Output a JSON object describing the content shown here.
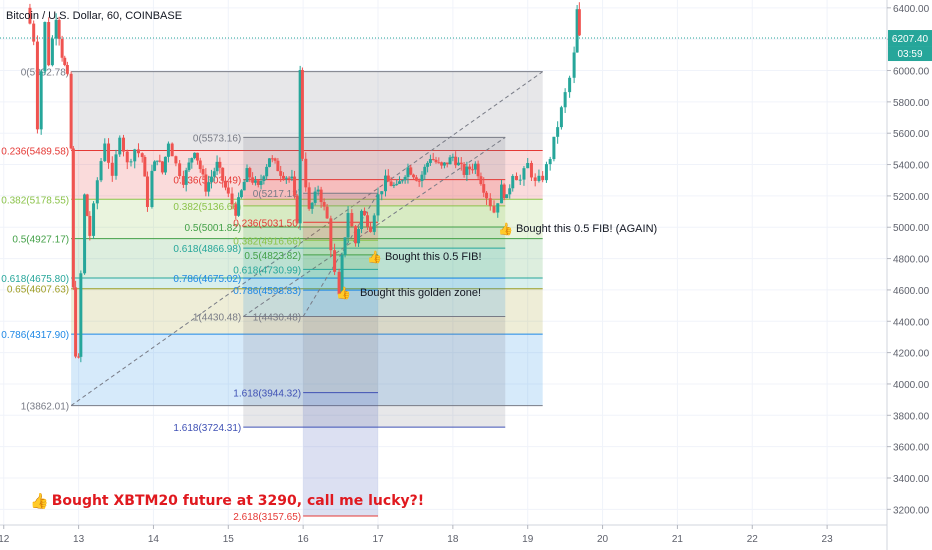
{
  "header": {
    "title": "Bitcoin / U.S. Dollar, 60, COINBASE"
  },
  "price_badges": {
    "last": "6207.40",
    "countdown": "03:59"
  },
  "annotations": [
    {
      "text": "Bought this 0.5 FIB! (AGAIN)",
      "icon": "thumbs-up-icon"
    },
    {
      "text": "Bought this 0.5 FIB!",
      "icon": "thumbs-up-icon"
    },
    {
      "text": "Bought this golden zone!",
      "icon": "thumbs-up-icon"
    }
  ],
  "big_annotation": {
    "text": "Bought XBTM20 future at 3290, call me lucky?!",
    "icon": "thumbs-up-icon"
  },
  "colors": {
    "up": "#26a69a",
    "down": "#ef5350",
    "accent": "#2962ff",
    "red_text": "#e0191f"
  },
  "chart_data": {
    "type": "candlestick",
    "title": "Bitcoin / U.S. Dollar, 60, COINBASE",
    "x_ticks": [
      "12",
      "13",
      "14",
      "15",
      "16",
      "17",
      "18",
      "19",
      "20",
      "21",
      "22",
      "23"
    ],
    "y_ticks": [
      "6400.00",
      "6200.00",
      "6000.00",
      "5800.00",
      "5600.00",
      "5400.00",
      "5200.00",
      "5000.00",
      "4800.00",
      "4600.00",
      "4400.00",
      "4200.00",
      "4000.00",
      "3800.00",
      "3600.00",
      "3400.00",
      "3200.00"
    ],
    "ylim": [
      3100,
      6450
    ],
    "xlim": [
      11.95,
      23.8
    ],
    "last_price": 6207.4,
    "price_path": [
      [
        12.3,
        6400
      ],
      [
        12.4,
        6200
      ],
      [
        12.45,
        5650
      ],
      [
        12.5,
        6000
      ],
      [
        12.55,
        6300
      ],
      [
        12.6,
        6050
      ],
      [
        12.7,
        6350
      ],
      [
        12.78,
        6100
      ],
      [
        12.85,
        5950
      ],
      [
        12.9,
        5500
      ],
      [
        12.93,
        4600
      ],
      [
        12.96,
        4200
      ],
      [
        13.0,
        4150
      ],
      [
        13.03,
        4700
      ],
      [
        13.08,
        5200
      ],
      [
        13.15,
        4950
      ],
      [
        13.25,
        5300
      ],
      [
        13.35,
        5550
      ],
      [
        13.45,
        5300
      ],
      [
        13.55,
        5600
      ],
      [
        13.65,
        5400
      ],
      [
        13.75,
        5500
      ],
      [
        13.85,
        5450
      ],
      [
        13.92,
        5150
      ],
      [
        13.98,
        5350
      ],
      [
        14.05,
        5450
      ],
      [
        14.12,
        5350
      ],
      [
        14.2,
        5550
      ],
      [
        14.3,
        5400
      ],
      [
        14.4,
        5300
      ],
      [
        14.55,
        5500
      ],
      [
        14.7,
        5250
      ],
      [
        14.85,
        5400
      ],
      [
        15.0,
        5200
      ],
      [
        15.1,
        5100
      ],
      [
        15.25,
        5350
      ],
      [
        15.4,
        5250
      ],
      [
        15.55,
        5450
      ],
      [
        15.7,
        5350
      ],
      [
        15.85,
        5300
      ],
      [
        15.92,
        5050
      ],
      [
        15.96,
        5990
      ],
      [
        15.99,
        5450
      ],
      [
        16.08,
        5100
      ],
      [
        16.2,
        5250
      ],
      [
        16.32,
        5050
      ],
      [
        16.42,
        4700
      ],
      [
        16.48,
        4550
      ],
      [
        16.52,
        4800
      ],
      [
        16.6,
        5100
      ],
      [
        16.7,
        4900
      ],
      [
        16.78,
        5100
      ],
      [
        16.9,
        5000
      ],
      [
        17.0,
        5200
      ],
      [
        17.1,
        5300
      ],
      [
        17.25,
        5250
      ],
      [
        17.4,
        5380
      ],
      [
        17.55,
        5300
      ],
      [
        17.7,
        5450
      ],
      [
        17.85,
        5380
      ],
      [
        18.0,
        5450
      ],
      [
        18.15,
        5350
      ],
      [
        18.3,
        5400
      ],
      [
        18.45,
        5200
      ],
      [
        18.55,
        5100
      ],
      [
        18.65,
        5250
      ],
      [
        18.72,
        5180
      ],
      [
        18.8,
        5350
      ],
      [
        18.9,
        5300
      ],
      [
        19.0,
        5400
      ],
      [
        19.1,
        5280
      ],
      [
        19.2,
        5320
      ],
      [
        19.3,
        5450
      ],
      [
        19.4,
        5650
      ],
      [
        19.5,
        5850
      ],
      [
        19.56,
        5950
      ],
      [
        19.62,
        6100
      ],
      [
        19.66,
        6380
      ],
      [
        19.69,
        6207.4
      ]
    ],
    "fib_retracements": [
      {
        "name": "fib-large",
        "x_range": [
          12.9,
          19.2
        ],
        "levels": [
          {
            "ratio": "0",
            "price": 5992.78,
            "label": "0(5992.78)",
            "color": "#787b86"
          },
          {
            "ratio": "0.236",
            "price": 5489.58,
            "label": "0.236(5489.58)",
            "color": "#e53935"
          },
          {
            "ratio": "0.382",
            "price": 5178.55,
            "label": "0.382(5178.55)",
            "color": "#8bc34a"
          },
          {
            "ratio": "0.5",
            "price": 4927.17,
            "label": "0.5(4927.17)",
            "color": "#43a047"
          },
          {
            "ratio": "0.618",
            "price": 4675.8,
            "label": "0.618(4675.80)",
            "color": "#26a69a"
          },
          {
            "ratio": "0.65",
            "price": 4607.63,
            "label": "0.65(4607.63)",
            "color": "#9e9d24"
          },
          {
            "ratio": "0.786",
            "price": 4317.9,
            "label": "0.786(4317.90)",
            "color": "#1e88e5"
          },
          {
            "ratio": "1",
            "price": 3862.01,
            "label": "1(3862.01)",
            "color": "#787b86"
          }
        ]
      },
      {
        "name": "fib-medium",
        "x_range": [
          15.2,
          18.7
        ],
        "levels": [
          {
            "ratio": "0",
            "price": 5573.16,
            "label": "0(5573.16)",
            "color": "#787b86"
          },
          {
            "ratio": "0.236",
            "price": 5303.49,
            "label": "0.236(5303.49)",
            "color": "#e53935"
          },
          {
            "ratio": "0.382",
            "price": 5136.66,
            "label": "0.382(5136.66)",
            "color": "#8bc34a"
          },
          {
            "ratio": "0.5",
            "price": 5001.82,
            "label": "0.5(5001.82)",
            "color": "#43a047"
          },
          {
            "ratio": "0.618",
            "price": 4866.98,
            "label": "0.618(4866.98)",
            "color": "#26a69a"
          },
          {
            "ratio": "0.786",
            "price": 4675.02,
            "label": "0.786(4675.02)",
            "color": "#1e88e5"
          },
          {
            "ratio": "1",
            "price": 4430.48,
            "label": "1(4430.48)",
            "color": "#787b86"
          },
          {
            "ratio": "1.618",
            "price": 3724.31,
            "label": "1.618(3724.31)",
            "color": "#3f51b5"
          }
        ]
      },
      {
        "name": "fib-small",
        "x_range": [
          16.0,
          17.0
        ],
        "levels": [
          {
            "ratio": "0",
            "price": 5217.13,
            "label": "0(5217.13)",
            "color": "#787b86"
          },
          {
            "ratio": "0.236",
            "price": 5031.5,
            "label": "0.236(5031.50)",
            "color": "#e53935"
          },
          {
            "ratio": "0.382",
            "price": 4916.66,
            "label": "0.382(4916.66)",
            "color": "#8bc34a"
          },
          {
            "ratio": "0.5",
            "price": 4823.82,
            "label": "0.5(4823.82)",
            "color": "#43a047"
          },
          {
            "ratio": "0.618",
            "price": 4730.99,
            "label": "0.618(4730.99)",
            "color": "#26a69a"
          },
          {
            "ratio": "0.786",
            "price": 4598.83,
            "label": "0.786(4598.83)",
            "color": "#1e88e5"
          },
          {
            "ratio": "1",
            "price": 4430.48,
            "label": "1(4430.48)",
            "color": "#787b86"
          },
          {
            "ratio": "1.618",
            "price": 3944.32,
            "label": "1.618(3944.32)",
            "color": "#3f51b5"
          },
          {
            "ratio": "2.618",
            "price": 3157.65,
            "label": "2.618(3157.65)",
            "color": "#e53935"
          }
        ]
      }
    ]
  }
}
